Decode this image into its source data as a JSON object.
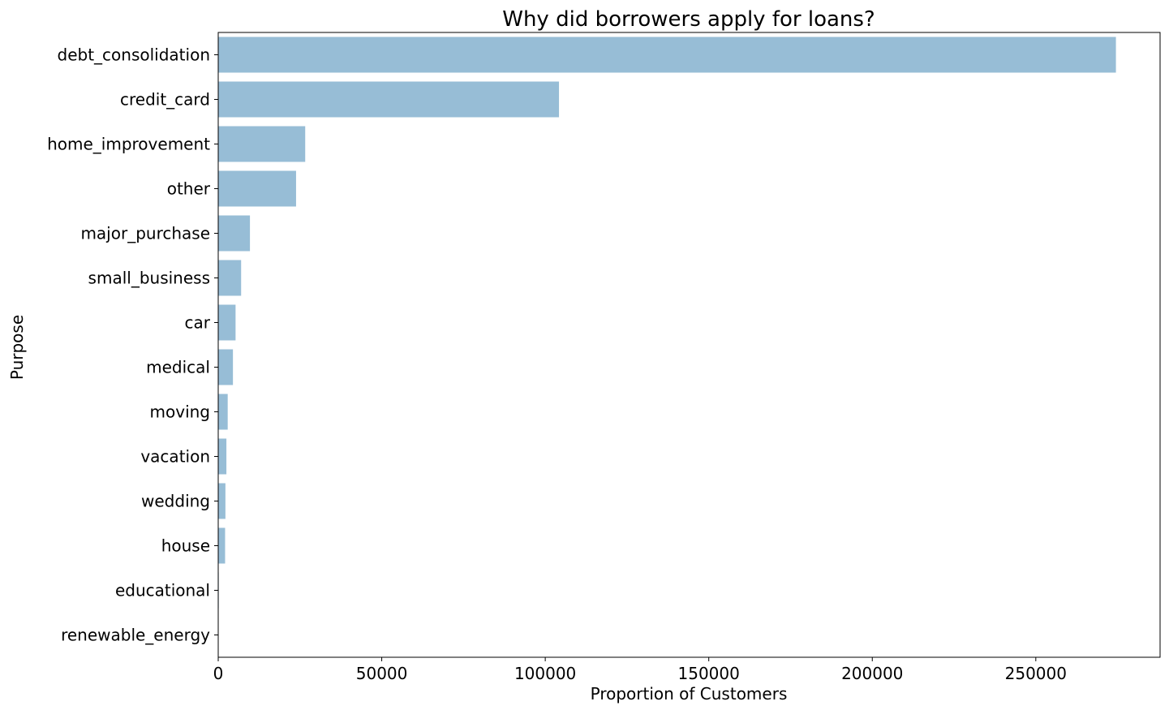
{
  "chart_data": {
    "type": "bar",
    "orientation": "horizontal",
    "title": "Why did borrowers apply for loans?",
    "xlabel": "Proportion of Customers",
    "ylabel": "Purpose",
    "categories": [
      "debt_consolidation",
      "credit_card",
      "home_improvement",
      "other",
      "major_purchase",
      "small_business",
      "car",
      "medical",
      "moving",
      "vacation",
      "wedding",
      "house",
      "educational",
      "renewable_energy"
    ],
    "values": [
      274500,
      104200,
      26600,
      23800,
      9700,
      7000,
      5300,
      4500,
      2900,
      2500,
      2200,
      2100,
      150,
      120
    ],
    "xlim": [
      0,
      288000
    ],
    "xticks": [
      0,
      50000,
      100000,
      150000,
      200000,
      250000
    ],
    "xtick_labels": [
      "0",
      "50000",
      "100000",
      "150000",
      "200000",
      "250000"
    ],
    "grid": false,
    "bar_color": "#97bdd6"
  }
}
